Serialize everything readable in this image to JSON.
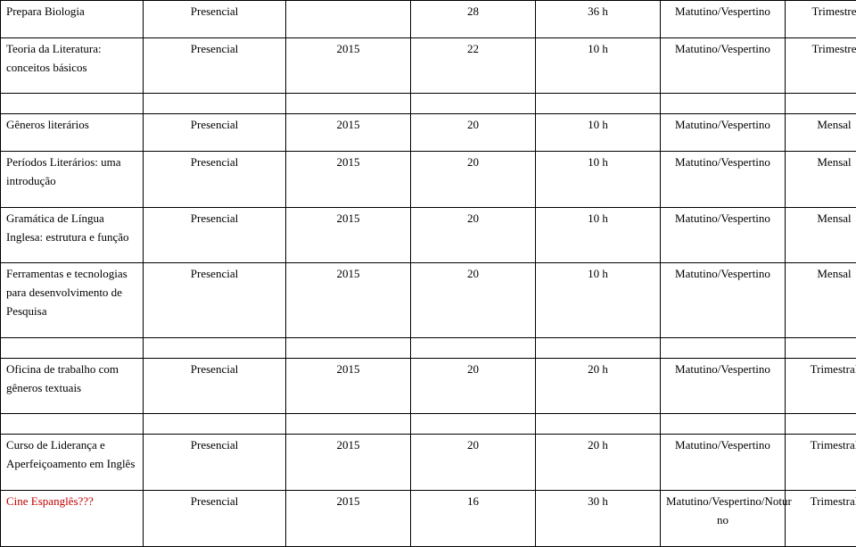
{
  "table1": {
    "rows": [
      {
        "c0": "Prepara Biologia",
        "c1": "Presencial",
        "c2": "",
        "c3": "28",
        "c4": "36 h",
        "c5": "Matutino/Vespertino",
        "c6": "Trimestre",
        "cls": ""
      },
      {
        "c0": "Teoria da Literatura: conceitos básicos",
        "c1": "Presencial",
        "c2": "2015",
        "c3": "22",
        "c4": "10 h",
        "c5": "Matutino/Vespertino",
        "c6": "Trimestre",
        "cls": ""
      }
    ]
  },
  "table2": {
    "rows": [
      {
        "c0": "Gêneros literários",
        "c1": "Presencial",
        "c2": "2015",
        "c3": "20",
        "c4": "10 h",
        "c5": "Matutino/Vespertino",
        "c6": "Mensal",
        "cls": ""
      },
      {
        "c0": "Períodos Literários: uma introdução",
        "c1": "Presencial",
        "c2": "2015",
        "c3": "20",
        "c4": "10 h",
        "c5": "Matutino/Vespertino",
        "c6": "Mensal",
        "cls": ""
      },
      {
        "c0": "Gramática de Língua Inglesa: estrutura e função",
        "c1": "Presencial",
        "c2": "2015",
        "c3": "20",
        "c4": "10 h",
        "c5": "Matutino/Vespertino",
        "c6": "Mensal",
        "cls": ""
      },
      {
        "c0": "Ferramentas e tecnologias para desenvolvimento de Pesquisa",
        "c1": "Presencial",
        "c2": "2015",
        "c3": "20",
        "c4": "10 h",
        "c5": "Matutino/Vespertino",
        "c6": "Mensal",
        "cls": ""
      }
    ]
  },
  "table3": {
    "rows": [
      {
        "c0": "Oficina de trabalho com gêneros textuais",
        "c1": "Presencial",
        "c2": "2015",
        "c3": "20",
        "c4": "20 h",
        "c5": "Matutino/Vespertino",
        "c6": "Trimestral",
        "cls": ""
      }
    ]
  },
  "table4": {
    "rows": [
      {
        "c0": "Curso de Liderança e Aperfeiçoamento em Inglês",
        "c1": "Presencial",
        "c2": "2015",
        "c3": "20",
        "c4": "20 h",
        "c5": "Matutino/Vespertino",
        "c6": "Trimestral",
        "cls": ""
      },
      {
        "c0": "Cine Espanglês???",
        "c1": "Presencial",
        "c2": "2015",
        "c3": "16",
        "c4": "30 h",
        "c5": "Matutino/Vespertino/Notur no",
        "c6": "Trimestral",
        "cls": "red"
      }
    ]
  }
}
